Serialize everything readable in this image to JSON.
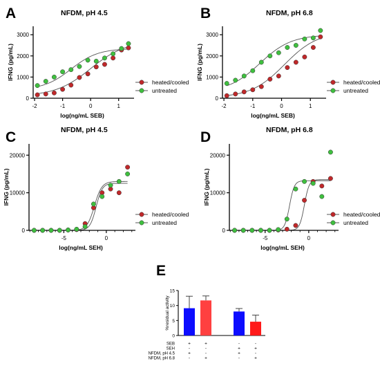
{
  "chart_data": [
    {
      "panel": "A",
      "title": "NFDM, pH 4.5",
      "type": "scatter",
      "xlabel": "log(ng/mL SEB)",
      "ylabel": "IFNG (pg/mL)",
      "xlim": [
        -2.05,
        1.45
      ],
      "ylim": [
        0,
        3400
      ],
      "xticks": [
        -2,
        -1,
        0,
        1
      ],
      "yticks": [
        0,
        1000,
        2000,
        3000
      ],
      "legend": "right",
      "series": [
        {
          "name": "heated/cooled",
          "color": "#c0282a",
          "x": [
            -1.9,
            -1.6,
            -1.3,
            -1.0,
            -0.7,
            -0.4,
            -0.1,
            0.2,
            0.5,
            0.8,
            1.1,
            1.35
          ],
          "y": [
            160,
            200,
            250,
            420,
            620,
            980,
            1150,
            1480,
            1600,
            1900,
            2280,
            2380
          ],
          "fit": {
            "bottom": 100,
            "top": 2700,
            "ec50": 0.0,
            "hill": 0.7
          }
        },
        {
          "name": "untreated",
          "color": "#3fbf3f",
          "x": [
            -1.9,
            -1.6,
            -1.3,
            -1.0,
            -0.7,
            -0.4,
            -0.1,
            0.2,
            0.5,
            0.8,
            1.1,
            1.35
          ],
          "y": [
            600,
            800,
            1000,
            1250,
            1350,
            1500,
            1800,
            1750,
            1900,
            2100,
            2350,
            2580
          ],
          "fit": {
            "bottom": 400,
            "top": 2350,
            "ec50": -0.7,
            "hill": 0.9
          }
        }
      ]
    },
    {
      "panel": "B",
      "title": "NFDM, pH 6.8",
      "type": "scatter",
      "xlabel": "log(ng/mL SEB)",
      "ylabel": "IFNG (pg/mL)",
      "xlim": [
        -2.05,
        1.45
      ],
      "ylim": [
        0,
        3400
      ],
      "xticks": [
        -2,
        -1,
        0,
        1
      ],
      "yticks": [
        0,
        1000,
        2000,
        3000
      ],
      "legend": "right",
      "series": [
        {
          "name": "heated/cooled",
          "color": "#c0282a",
          "x": [
            -1.9,
            -1.6,
            -1.3,
            -1.0,
            -0.7,
            -0.4,
            -0.1,
            0.2,
            0.5,
            0.8,
            1.1,
            1.35
          ],
          "y": [
            120,
            200,
            300,
            400,
            550,
            900,
            1050,
            1450,
            1700,
            1950,
            2400,
            2900
          ],
          "fit": {
            "bottom": 30,
            "top": 3150,
            "ec50": 0.1,
            "hill": 0.75
          }
        },
        {
          "name": "untreated",
          "color": "#3fbf3f",
          "x": [
            -1.9,
            -1.6,
            -1.3,
            -1.0,
            -0.7,
            -0.4,
            -0.1,
            0.2,
            0.5,
            0.8,
            1.1,
            1.35
          ],
          "y": [
            700,
            850,
            1050,
            1300,
            1700,
            2000,
            2150,
            2400,
            2500,
            2800,
            2850,
            3200
          ],
          "fit": {
            "bottom": 300,
            "top": 3000,
            "ec50": -0.75,
            "hill": 0.8
          }
        }
      ]
    },
    {
      "panel": "C",
      "title": "NFDM, pH 4.5",
      "type": "scatter",
      "xlabel": "log(ng/mL SEH)",
      "ylabel": "IFNG (pg/mL)",
      "xlim": [
        -9.1,
        3.1
      ],
      "ylim": [
        0,
        23000
      ],
      "xticks": [
        -5,
        0
      ],
      "xtick_labels": [
        "-5",
        "0"
      ],
      "yticks": [
        0,
        10000,
        20000
      ],
      "legend": "right",
      "series": [
        {
          "name": "heated/cooled",
          "color": "#c0282a",
          "x": [
            -8.5,
            -7.5,
            -6.5,
            -5.5,
            -4.5,
            -3.5,
            -2.5,
            -1.5,
            -0.5,
            0.5,
            1.5,
            2.5
          ],
          "y": [
            0,
            0,
            0,
            0,
            100,
            200,
            1800,
            6000,
            10000,
            11000,
            10000,
            16800
          ],
          "fit": {
            "bottom": 0,
            "top": 13000,
            "ec50": -1.4,
            "hill": 1.0
          }
        },
        {
          "name": "untreated",
          "color": "#3fbf3f",
          "x": [
            -8.5,
            -7.5,
            -6.5,
            -5.5,
            -4.5,
            -3.5,
            -2.5,
            -1.5,
            -0.5,
            0.5,
            1.5,
            2.5
          ],
          "y": [
            0,
            0,
            0,
            0,
            100,
            300,
            1000,
            7000,
            9000,
            12000,
            13000,
            15000
          ],
          "fit": {
            "bottom": 0,
            "top": 12500,
            "ec50": -1.2,
            "hill": 1.2
          }
        }
      ]
    },
    {
      "panel": "D",
      "title": "NFDM, pH 6.8",
      "type": "scatter",
      "xlabel": "log(ng/mL SEH)",
      "ylabel": "IFNG (pg/mL)",
      "xlim": [
        -9.1,
        3.1
      ],
      "ylim": [
        0,
        23000
      ],
      "xticks": [
        -5,
        0
      ],
      "xtick_labels": [
        "-5",
        "0"
      ],
      "yticks": [
        0,
        10000,
        20000
      ],
      "legend": "right",
      "series": [
        {
          "name": "heated/cooled",
          "color": "#c0282a",
          "x": [
            -8.5,
            -7.5,
            -6.5,
            -5.5,
            -4.5,
            -3.5,
            -2.5,
            -1.5,
            -0.5,
            0.5,
            1.5,
            2.5
          ],
          "y": [
            0,
            0,
            0,
            0,
            0,
            100,
            300,
            1300,
            8000,
            13000,
            11800,
            13800
          ],
          "fit": {
            "bottom": 0,
            "top": 13500,
            "ec50": -0.5,
            "hill": 1.6
          }
        },
        {
          "name": "untreated",
          "color": "#3fbf3f",
          "x": [
            -8.5,
            -7.5,
            -6.5,
            -5.5,
            -4.5,
            -3.5,
            -2.5,
            -1.5,
            -0.5,
            0.5,
            1.5,
            2.5
          ],
          "y": [
            0,
            0,
            0,
            0,
            0,
            200,
            3000,
            11000,
            13000,
            12500,
            9000,
            20800
          ],
          "fit": {
            "bottom": 0,
            "top": 13200,
            "ec50": -2.2,
            "hill": 1.6
          }
        }
      ]
    },
    {
      "panel": "E",
      "type": "bar",
      "ylabel": "%residual activity",
      "ylim": [
        0,
        15
      ],
      "yticks": [
        0,
        5,
        10,
        15
      ],
      "bars": [
        {
          "value": 9.1,
          "error": 4.0,
          "color": "#0c0cff"
        },
        {
          "value": 11.7,
          "error": 1.5,
          "color": "#ff4040"
        },
        {
          "value": 8.0,
          "error": 1.0,
          "color": "#0c0cff"
        },
        {
          "value": 4.6,
          "error": 2.2,
          "color": "#ff1a1a"
        }
      ],
      "condition_rows": [
        {
          "label": "SEB",
          "marks": [
            "+",
            "+",
            "-",
            "-"
          ]
        },
        {
          "label": "SEH",
          "marks": [
            "-",
            "-",
            "+",
            "+"
          ]
        },
        {
          "label": "NFDM, pH 4.5",
          "marks": [
            "+",
            "-",
            "+",
            "-"
          ]
        },
        {
          "label": "NFDM, pH 6.8",
          "marks": [
            "-",
            "+",
            "-",
            "+"
          ]
        }
      ]
    }
  ]
}
